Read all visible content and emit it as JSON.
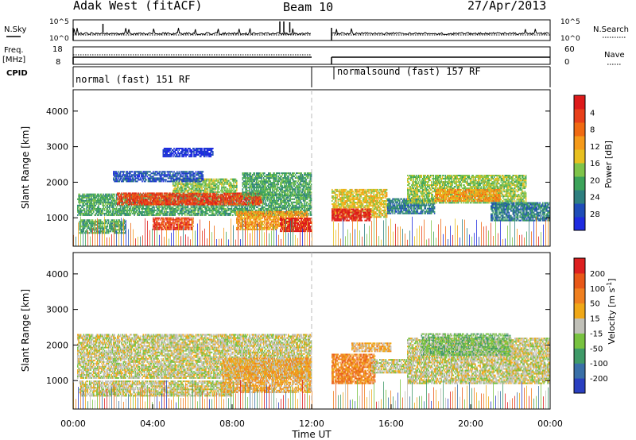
{
  "header": {
    "title": "Adak West (fitACF)",
    "beam": "Beam 10",
    "date": "27/Apr/2013"
  },
  "noise_panel": {
    "left_label": "N.Sky",
    "right_label": "N.Search",
    "left_ticks": [
      "10^5",
      "10^0"
    ],
    "right_ticks": [
      "10^5",
      "10^0"
    ]
  },
  "freq_panel": {
    "left_label_1": "Freq.",
    "left_label_2": "[MHz]",
    "right_label": "Nave",
    "left_ticks": [
      "18",
      "8"
    ],
    "right_ticks": [
      "60",
      "0"
    ]
  },
  "cpid_panel": {
    "label": "CPID",
    "segments": [
      {
        "text": "normal (fast) 151 RF",
        "start_hour": 0.0,
        "end_hour": 12.0
      },
      {
        "text": "normalsound (fast) 157 RF",
        "start_hour": 13.0,
        "end_hour": 24.0
      }
    ]
  },
  "chart_data": [
    {
      "type": "heatmap",
      "name": "power",
      "ylabel": "Slant Range [km]",
      "xlim": [
        0,
        24
      ],
      "ylim": [
        200,
        4600
      ],
      "yticks": [
        "1000",
        "2000",
        "3000",
        "4000"
      ],
      "colorbar": {
        "label": "Power [dB]",
        "ticks": [
          "4",
          "8",
          "12",
          "16",
          "20",
          "24",
          "28"
        ],
        "colors": [
          "#1f2ce0",
          "#1f4db8",
          "#2e7f7f",
          "#3ca35a",
          "#7fc44a",
          "#e8c020",
          "#f59a1a",
          "#f06a12",
          "#e8401a",
          "#dd1a1a"
        ]
      },
      "gap_hours": [
        12.0,
        13.0
      ],
      "bands": [
        {
          "h": [
            0.2,
            12.0
          ],
          "r": [
            1050,
            1650
          ],
          "c": 3
        },
        {
          "h": [
            2.2,
            9.5
          ],
          "r": [
            1350,
            1700
          ],
          "c": 8
        },
        {
          "h": [
            5.0,
            8.2
          ],
          "r": [
            1700,
            2100
          ],
          "c": 4
        },
        {
          "h": [
            8.5,
            12.0
          ],
          "r": [
            1600,
            2250
          ],
          "c": 3
        },
        {
          "h": [
            0.3,
            2.6
          ],
          "r": [
            550,
            950
          ],
          "c": 3
        },
        {
          "h": [
            4.0,
            6.0
          ],
          "r": [
            650,
            1000
          ],
          "c": 8
        },
        {
          "h": [
            8.2,
            11.8
          ],
          "r": [
            650,
            1150
          ],
          "c": 6
        },
        {
          "h": [
            10.4,
            12.0
          ],
          "r": [
            600,
            1000
          ],
          "c": 9
        },
        {
          "h": [
            13.0,
            15.8
          ],
          "r": [
            1000,
            1800
          ],
          "c": 5
        },
        {
          "h": [
            13.0,
            15.0
          ],
          "r": [
            900,
            1250
          ],
          "c": 9
        },
        {
          "h": [
            15.8,
            18.2
          ],
          "r": [
            1100,
            1550
          ],
          "c": 2
        },
        {
          "h": [
            16.8,
            22.8
          ],
          "r": [
            1400,
            2200
          ],
          "c": 4
        },
        {
          "h": [
            18.2,
            21.5
          ],
          "r": [
            1450,
            1800
          ],
          "c": 6
        },
        {
          "h": [
            21.0,
            24.0
          ],
          "r": [
            900,
            1400
          ],
          "c": 2
        },
        {
          "h": [
            2.0,
            6.5
          ],
          "r": [
            2000,
            2300
          ],
          "c": 1
        },
        {
          "h": [
            4.5,
            7.0
          ],
          "r": [
            2700,
            2950
          ],
          "c": 0
        }
      ]
    },
    {
      "type": "heatmap",
      "name": "velocity",
      "ylabel": "Slant Range [km]",
      "xlabel": "Time UT",
      "xlim": [
        0,
        24
      ],
      "xticks": [
        "00:00",
        "04:00",
        "08:00",
        "12:00",
        "16:00",
        "20:00",
        "00:00"
      ],
      "ylim": [
        200,
        4600
      ],
      "yticks": [
        "1000",
        "2000",
        "3000",
        "4000"
      ],
      "colorbar": {
        "label": "Velocity [m s^-1]",
        "ticks": [
          "200",
          "100",
          "50",
          "15",
          "-15",
          "-50",
          "-100",
          "-200"
        ],
        "colors": [
          "#2a3fc0",
          "#3a70a8",
          "#3f9a68",
          "#78c240",
          "#c0c0b8",
          "#f0a818",
          "#f08020",
          "#e85818",
          "#dd2020"
        ]
      },
      "gap_hours": [
        12.0,
        13.0
      ],
      "bands": [
        {
          "h": [
            0.2,
            12.0
          ],
          "r": [
            1050,
            2300
          ],
          "c": 4
        },
        {
          "h": [
            0.3,
            8.0
          ],
          "r": [
            550,
            1000
          ],
          "c": 4
        },
        {
          "h": [
            7.5,
            12.0
          ],
          "r": [
            650,
            1600
          ],
          "c": 5
        },
        {
          "h": [
            13.0,
            15.2
          ],
          "r": [
            900,
            1750
          ],
          "c": 6
        },
        {
          "h": [
            15.0,
            17.0
          ],
          "r": [
            1200,
            1600
          ],
          "c": 4
        },
        {
          "h": [
            14.0,
            16.0
          ],
          "r": [
            1800,
            2050
          ],
          "c": 5
        },
        {
          "h": [
            16.8,
            24.0
          ],
          "r": [
            900,
            2200
          ],
          "c": 4
        },
        {
          "h": [
            17.5,
            22.0
          ],
          "r": [
            1700,
            2300
          ],
          "c": 3
        }
      ]
    }
  ]
}
